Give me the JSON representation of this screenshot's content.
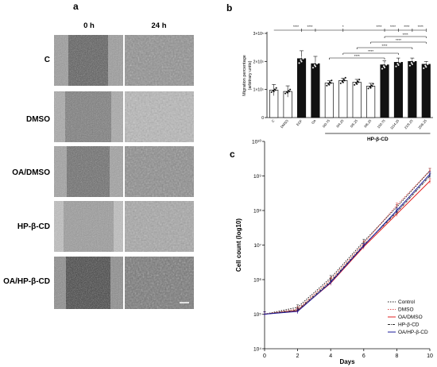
{
  "panel_a": {
    "letter": "a",
    "column_labels": [
      "0 h",
      "24 h"
    ],
    "row_labels": [
      "C",
      "DMSO",
      "OA/DMSO",
      "HP-β-CD",
      "OA/HP-β-CD"
    ]
  },
  "panel_b": {
    "letter": "b",
    "group_label": "HP-β-CD",
    "significance": [
      "****",
      "****",
      "*",
      "****",
      "****",
      "****",
      "****",
      "****",
      "****",
      "****",
      "****",
      "****"
    ]
  },
  "panel_c": {
    "letter": "c",
    "legend": [
      "Control",
      "DMSO",
      "OA/DMSO",
      "HP-β-CD",
      "OA/HP-β-CD"
    ]
  },
  "colors": {
    "control": "#222222",
    "dmso": "#e05050",
    "oa_dmso": "#e02020",
    "hp": "#2a2a2a",
    "oa_hp": "#1a1a9a"
  },
  "chart_data": [
    {
      "type": "bar",
      "title": "",
      "ylabel": "Migration percentage (arbitrary units)",
      "xlabel": "HP-β-CD",
      "categories": [
        "C",
        "DMSO",
        "EGF",
        "OA",
        "0/0.75",
        "0/4.25",
        "0/5.25",
        "0/6.25",
        "150.75",
        "1114.25",
        "21/5.25",
        "25/6.25"
      ],
      "values": [
        98000,
        93000,
        210000,
        192000,
        123000,
        132000,
        126000,
        112000,
        188000,
        197000,
        200000,
        190000
      ],
      "errors": [
        20000,
        20000,
        28000,
        26000,
        8000,
        8000,
        10000,
        10000,
        14000,
        15000,
        12000,
        10000
      ],
      "fills": [
        "white",
        "white",
        "black",
        "black",
        "white",
        "white",
        "white",
        "white",
        "black",
        "black",
        "black",
        "black"
      ],
      "yticks": [
        "0",
        "1×10⁵",
        "2×10⁵",
        "3×10⁵"
      ],
      "ylim": [
        0,
        300000
      ]
    },
    {
      "type": "line",
      "title": "",
      "xlabel": "Days",
      "ylabel": "Cell count (log10)",
      "x": [
        0,
        2,
        4,
        6,
        8,
        10
      ],
      "xticks": [
        "0",
        "2",
        "4",
        "6",
        "8",
        "10"
      ],
      "yticks": [
        "10⁴",
        "10⁵",
        "10⁶",
        "10⁷",
        "10⁸",
        "10⁹",
        "10¹⁰"
      ],
      "ylim_log10": [
        4,
        10
      ],
      "series": [
        {
          "name": "Control",
          "log10": [
            5.0,
            5.2,
            6.05,
            7.1,
            8.1,
            9.15
          ]
        },
        {
          "name": "DMSO",
          "log10": [
            5.0,
            5.15,
            6.0,
            7.05,
            8.15,
            9.15
          ]
        },
        {
          "name": "OA/DMSO",
          "log10": [
            5.0,
            5.1,
            5.9,
            6.95,
            7.9,
            8.85
          ]
        },
        {
          "name": "HP-β-CD",
          "log10": [
            5.0,
            5.12,
            5.95,
            7.0,
            7.95,
            9.0
          ]
        },
        {
          "name": "OA/HP-β-CD",
          "log10": [
            5.0,
            5.08,
            5.92,
            6.98,
            8.0,
            9.05
          ]
        }
      ]
    }
  ]
}
